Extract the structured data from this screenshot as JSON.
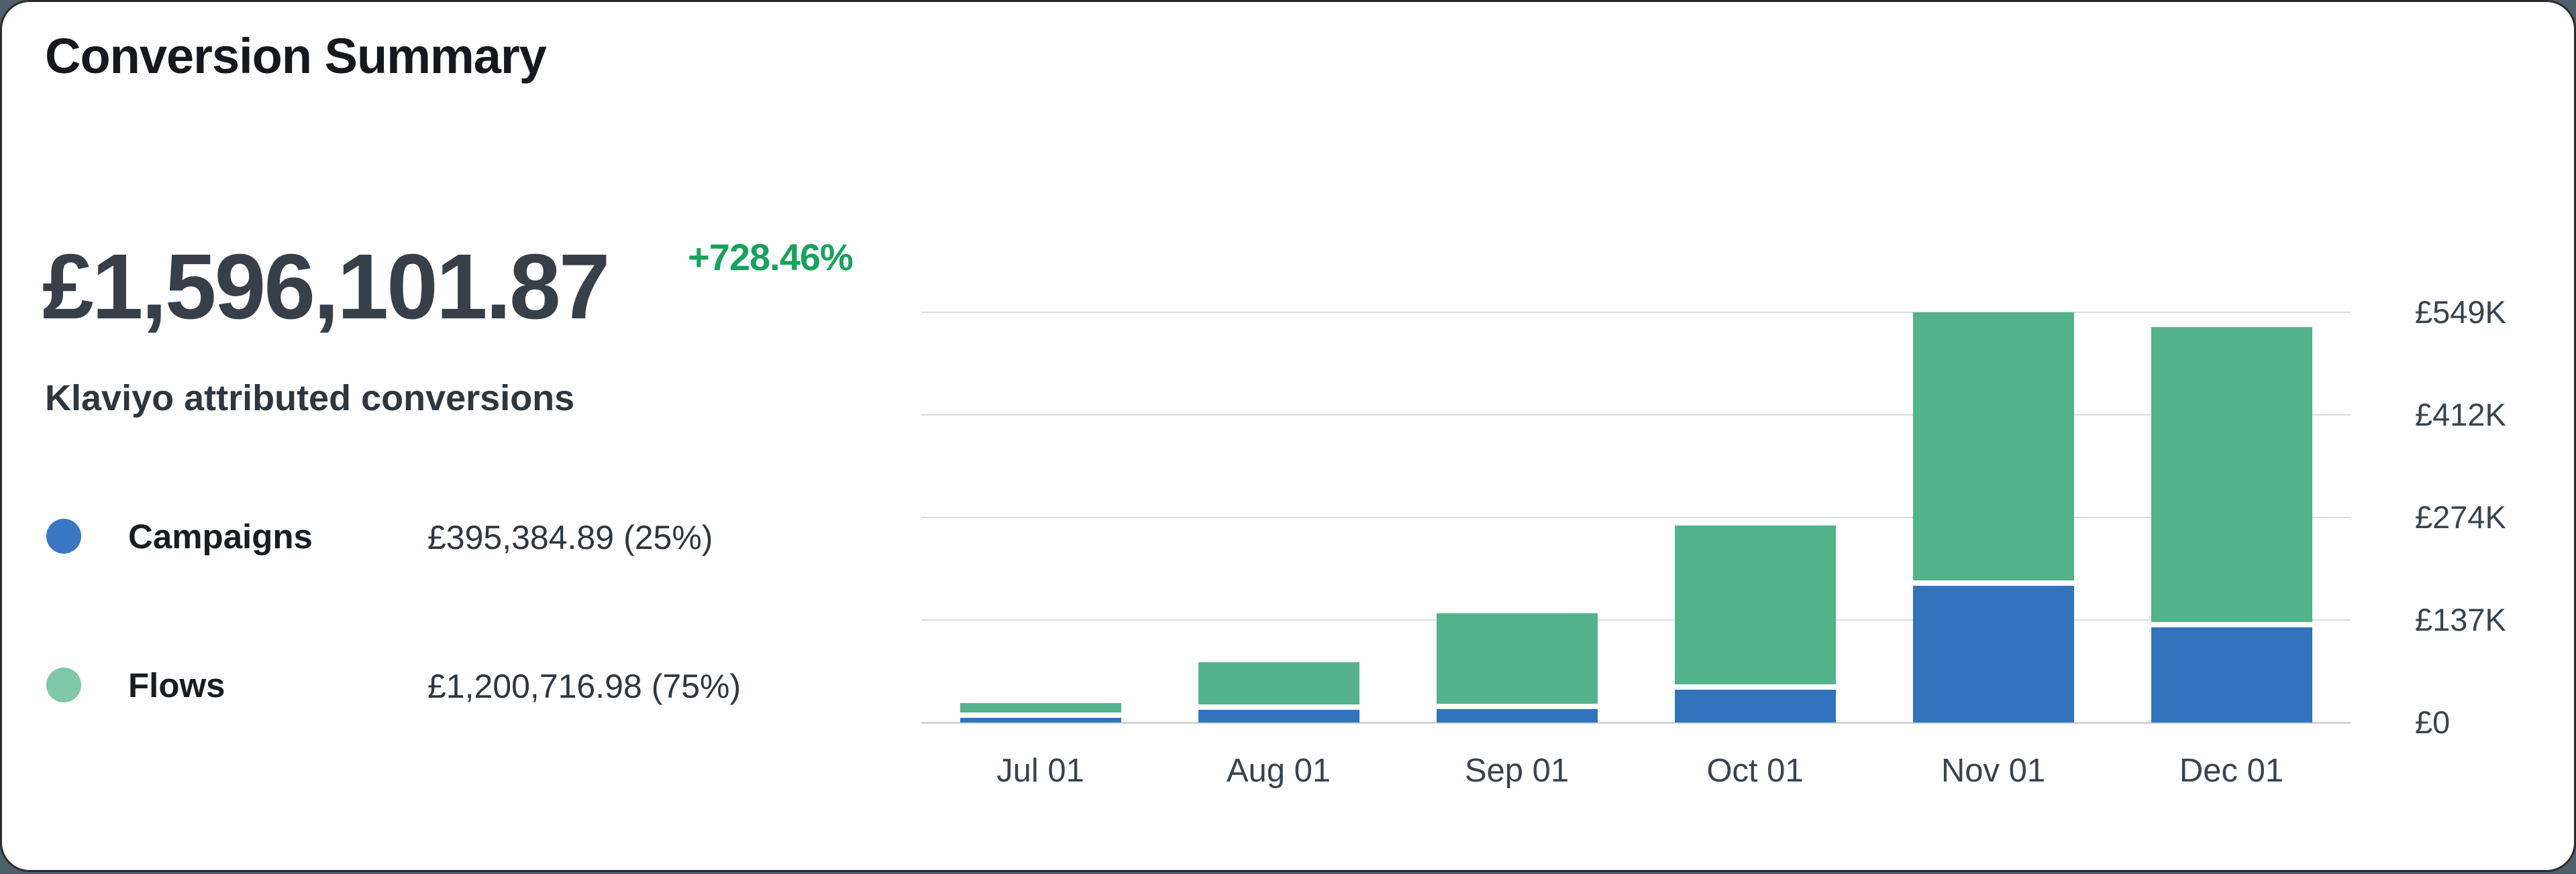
{
  "header": {
    "title": "Conversion Summary"
  },
  "summary": {
    "total": "£1,596,101.87",
    "delta": "+728.46%",
    "subtitle": "Klaviyo attributed conversions"
  },
  "legend": {
    "items": [
      {
        "label": "Campaigns",
        "value": "£395,384.89",
        "share": "(25%)",
        "color": "#3a76c4"
      },
      {
        "label": "Flows",
        "value": "£1,200,716.98",
        "share": "(75%)",
        "color": "#7fc8a5"
      }
    ]
  },
  "colors": {
    "campaigns_bar": "#3273be",
    "flows_bar": "#53b38b",
    "delta_green": "#17a35d",
    "big_number": "#373f49",
    "gridline": "#dadde1",
    "axis_text": "#39434e",
    "card_background": "#ffffff"
  },
  "chart_data": {
    "type": "bar",
    "stacked": true,
    "title": "Klaviyo attributed conversions by month",
    "categories": [
      "Jul 01",
      "Aug 01",
      "Sep 01",
      "Oct 01",
      "Nov 01",
      "Dec 01"
    ],
    "series": [
      {
        "name": "Campaigns",
        "color": "#3273be",
        "values": [
          6000,
          17000,
          18000,
          44000,
          183000,
          127000
        ]
      },
      {
        "name": "Flows",
        "color": "#53b38b",
        "values": [
          20000,
          64000,
          128000,
          220000,
          366000,
          402000
        ]
      }
    ],
    "series_totals": {
      "Campaigns": 395384.89,
      "Flows": 1200716.98,
      "Overall": 1596101.87
    },
    "xlabel": "",
    "ylabel": "",
    "ylim": [
      0,
      549000
    ],
    "y_ticks": [
      {
        "label": "£549K",
        "value": 549000
      },
      {
        "label": "£412K",
        "value": 411750
      },
      {
        "label": "£274K",
        "value": 274500
      },
      {
        "label": "£137K",
        "value": 137250
      },
      {
        "label": "£0",
        "value": 0
      }
    ],
    "grid": "horizontal",
    "legend_position": "left",
    "y_axis_position": "right",
    "currency": "GBP"
  }
}
